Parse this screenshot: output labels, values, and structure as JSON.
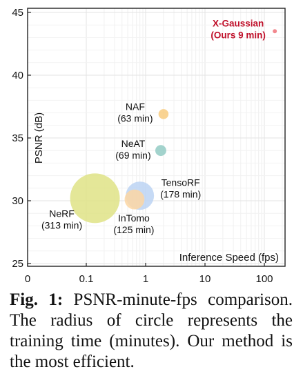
{
  "chart_data": {
    "type": "scatter",
    "xlabel": "Inference Speed (fps)",
    "ylabel": "PSNR (dB)",
    "x_ticks": [
      {
        "value": 0,
        "label": "0"
      },
      {
        "value": 0.1,
        "label": "0.1"
      },
      {
        "value": 1,
        "label": "1"
      },
      {
        "value": 10,
        "label": "10"
      },
      {
        "value": 100,
        "label": "100"
      }
    ],
    "y_ticks": [
      25,
      30,
      35,
      40,
      45
    ],
    "ylim": [
      25,
      45
    ],
    "x_scale": "log",
    "grid": true,
    "points": [
      {
        "name": "NeRF",
        "detail": "(313 min)",
        "x": 0.14,
        "y": 30.2,
        "minutes": 313,
        "color": "#dfe386",
        "highlight": false
      },
      {
        "name": "TensoRF",
        "detail": "(178 min)",
        "x": 0.8,
        "y": 30.4,
        "minutes": 178,
        "color": "#bcd3f3",
        "highlight": false
      },
      {
        "name": "InTomo",
        "detail": "(125 min)",
        "x": 0.65,
        "y": 30.1,
        "minutes": 125,
        "color": "#fbd6a3",
        "highlight": false
      },
      {
        "name": "NeAT",
        "detail": "(69 min)",
        "x": 1.8,
        "y": 34.0,
        "minutes": 69,
        "color": "#93cbc4",
        "highlight": false
      },
      {
        "name": "NAF",
        "detail": "(63 min)",
        "x": 2.0,
        "y": 36.9,
        "minutes": 63,
        "color": "#f8cb7f",
        "highlight": false
      },
      {
        "name": "X-Gaussian",
        "detail": "(Ours 9 min)",
        "x": 150,
        "y": 43.5,
        "minutes": 9,
        "color": "#f0737a",
        "highlight": true
      }
    ]
  },
  "caption": {
    "fig_label": "Fig. 1:",
    "text": " PSNR-minute-fps comparison. The radius of circle represents the training time (minutes). Our method is the most efficient."
  }
}
